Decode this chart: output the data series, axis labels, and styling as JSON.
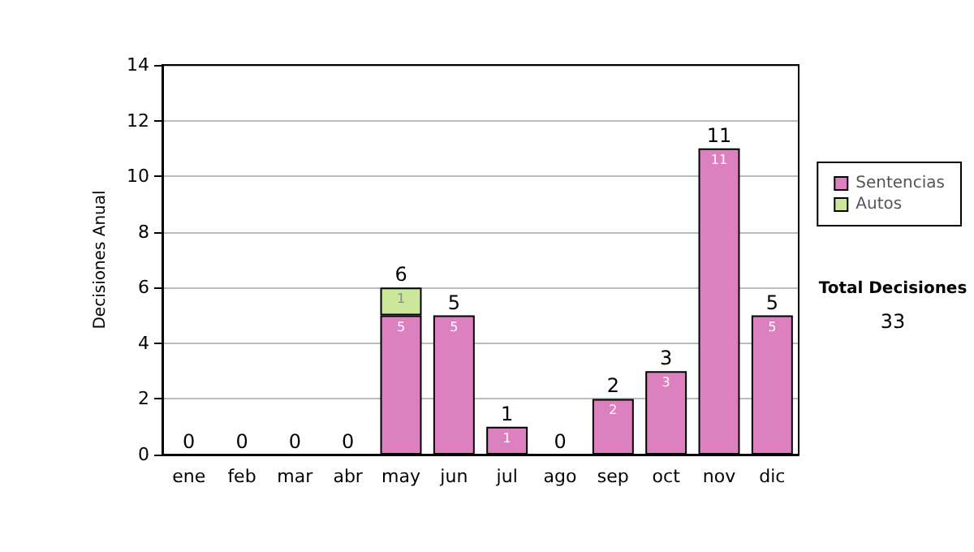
{
  "chart_data": {
    "type": "bar",
    "ylabel": "Decisiones Anual",
    "categories": [
      "ene",
      "feb",
      "mar",
      "abr",
      "may",
      "jun",
      "jul",
      "ago",
      "sep",
      "oct",
      "nov",
      "dic"
    ],
    "series": [
      {
        "name": "Sentencias",
        "color": "#dd80c0",
        "values": [
          0,
          0,
          0,
          0,
          5,
          5,
          1,
          0,
          2,
          3,
          11,
          5
        ],
        "value_labels": [
          null,
          null,
          null,
          null,
          "5",
          "5",
          "1",
          null,
          "2",
          "3",
          "11",
          "5"
        ]
      },
      {
        "name": "Autos",
        "color": "#cce69a",
        "values": [
          0,
          0,
          0,
          0,
          1,
          0,
          0,
          0,
          0,
          0,
          0,
          0
        ],
        "value_labels": [
          null,
          null,
          null,
          null,
          "1",
          null,
          null,
          null,
          null,
          null,
          null,
          null
        ]
      }
    ],
    "stacked": true,
    "totals": [
      "0",
      "0",
      "0",
      "0",
      "6",
      "5",
      "1",
      "0",
      "2",
      "3",
      "11",
      "5"
    ],
    "ylim": [
      0,
      14
    ],
    "yticks": [
      0,
      2,
      4,
      6,
      8,
      10,
      12,
      14
    ],
    "grid": "y",
    "legend": "right",
    "annotations": [
      "Total Decisiones",
      "33"
    ]
  }
}
